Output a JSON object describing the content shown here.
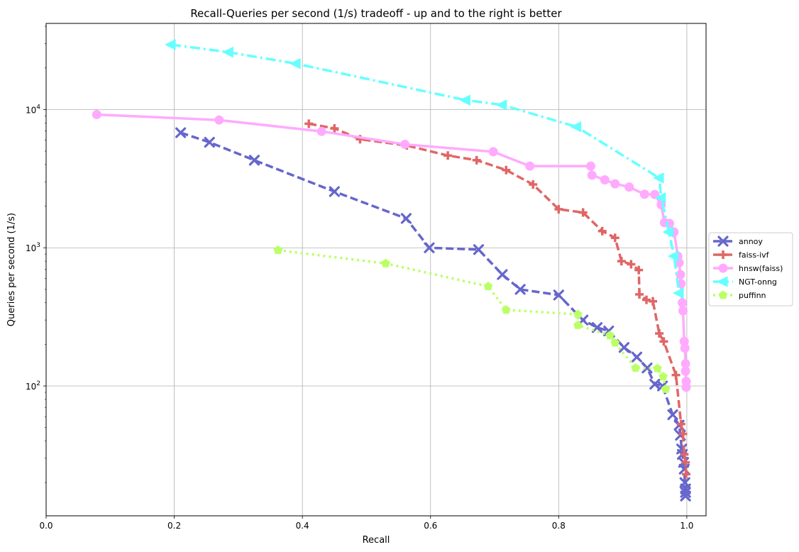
{
  "chart_data": {
    "type": "line",
    "title": "Recall-Queries per second (1/s) tradeoff - up and to the right is better",
    "xlabel": "Recall",
    "ylabel": "Queries per second (1/s)",
    "xlim": [
      0,
      1.03
    ],
    "ylim": [
      11.5,
      42000
    ],
    "yscale": "log",
    "grid": true,
    "legend_position": "right",
    "x_ticks": [
      {
        "value": 0.0,
        "label": "0.0"
      },
      {
        "value": 0.2,
        "label": "0.2"
      },
      {
        "value": 0.4,
        "label": "0.4"
      },
      {
        "value": 0.6,
        "label": "0.6"
      },
      {
        "value": 0.8,
        "label": "0.8"
      },
      {
        "value": 1.0,
        "label": "1.0"
      }
    ],
    "y_ticks": [
      {
        "value": 100,
        "base": "10",
        "exp": "2"
      },
      {
        "value": 1000,
        "base": "10",
        "exp": "3"
      },
      {
        "value": 10000,
        "base": "10",
        "exp": "4"
      }
    ],
    "series": [
      {
        "name": "annoy",
        "color": "#6666cc",
        "dash": "11,5",
        "marker": "x",
        "points": [
          [
            0.21,
            6800
          ],
          [
            0.255,
            5800
          ],
          [
            0.325,
            4300
          ],
          [
            0.45,
            2550
          ],
          [
            0.562,
            1630
          ],
          [
            0.598,
            1000
          ],
          [
            0.675,
            970
          ],
          [
            0.712,
            640
          ],
          [
            0.74,
            500
          ],
          [
            0.8,
            455
          ],
          [
            0.838,
            300
          ],
          [
            0.86,
            265
          ],
          [
            0.878,
            250
          ],
          [
            0.902,
            190
          ],
          [
            0.922,
            162
          ],
          [
            0.938,
            135
          ],
          [
            0.95,
            103
          ],
          [
            0.962,
            100
          ],
          [
            0.978,
            62
          ],
          [
            0.988,
            52
          ],
          [
            0.99,
            44
          ],
          [
            0.992,
            35
          ],
          [
            0.993,
            32
          ],
          [
            0.995,
            28
          ],
          [
            0.996,
            25
          ],
          [
            0.997,
            20
          ],
          [
            0.998,
            18
          ],
          [
            0.998,
            17
          ],
          [
            0.998,
            16
          ]
        ]
      },
      {
        "name": "faiss-ivf",
        "color": "#e06666",
        "dash": "11,5",
        "marker": "plus",
        "points": [
          [
            0.41,
            7900
          ],
          [
            0.45,
            7300
          ],
          [
            0.49,
            6100
          ],
          [
            0.563,
            5500
          ],
          [
            0.627,
            4650
          ],
          [
            0.672,
            4300
          ],
          [
            0.718,
            3650
          ],
          [
            0.76,
            2870
          ],
          [
            0.8,
            1900
          ],
          [
            0.838,
            1800
          ],
          [
            0.868,
            1320
          ],
          [
            0.888,
            1180
          ],
          [
            0.898,
            800
          ],
          [
            0.913,
            760
          ],
          [
            0.925,
            690
          ],
          [
            0.926,
            460
          ],
          [
            0.937,
            420
          ],
          [
            0.947,
            410
          ],
          [
            0.957,
            240
          ],
          [
            0.964,
            210
          ],
          [
            0.983,
            120
          ],
          [
            0.991,
            53
          ],
          [
            0.994,
            45
          ],
          [
            0.996,
            32
          ],
          [
            0.998,
            28
          ],
          [
            0.999,
            23
          ]
        ]
      },
      {
        "name": "hnsw(faiss)",
        "color": "#ffaaff",
        "dash": "",
        "marker": "circle",
        "points": [
          [
            0.079,
            9200
          ],
          [
            0.27,
            8400
          ],
          [
            0.43,
            6950
          ],
          [
            0.56,
            5600
          ],
          [
            0.698,
            4950
          ],
          [
            0.755,
            3900
          ],
          [
            0.85,
            3900
          ],
          [
            0.852,
            3350
          ],
          [
            0.872,
            3100
          ],
          [
            0.888,
            2900
          ],
          [
            0.91,
            2750
          ],
          [
            0.934,
            2440
          ],
          [
            0.95,
            2430
          ],
          [
            0.96,
            2050
          ],
          [
            0.965,
            1520
          ],
          [
            0.973,
            1500
          ],
          [
            0.98,
            1300
          ],
          [
            0.986,
            870
          ],
          [
            0.988,
            780
          ],
          [
            0.99,
            640
          ],
          [
            0.991,
            550
          ],
          [
            0.993,
            400
          ],
          [
            0.994,
            350
          ],
          [
            0.996,
            210
          ],
          [
            0.997,
            188
          ],
          [
            0.998,
            145
          ],
          [
            0.998,
            128
          ],
          [
            0.999,
            108
          ],
          [
            0.999,
            98
          ]
        ]
      },
      {
        "name": "NGT-onng",
        "color": "#66ffff",
        "dash": "14,5,3,5",
        "marker": "triangle-left",
        "points": [
          [
            0.195,
            29500
          ],
          [
            0.285,
            26000
          ],
          [
            0.39,
            21500
          ],
          [
            0.655,
            11700
          ],
          [
            0.712,
            10800
          ],
          [
            0.828,
            7500
          ],
          [
            0.957,
            3200
          ],
          [
            0.96,
            2300
          ],
          [
            0.972,
            1300
          ],
          [
            0.98,
            870
          ],
          [
            0.988,
            470
          ]
        ]
      },
      {
        "name": "puffinn",
        "color": "#bbff66",
        "dash": "3,5",
        "marker": "pentagon",
        "points": [
          [
            0.362,
            960
          ],
          [
            0.53,
            770
          ],
          [
            0.69,
            525
          ],
          [
            0.718,
            355
          ],
          [
            0.83,
            330
          ],
          [
            0.83,
            275
          ],
          [
            0.88,
            232
          ],
          [
            0.888,
            205
          ],
          [
            0.92,
            135
          ],
          [
            0.954,
            134
          ],
          [
            0.963,
            117
          ],
          [
            0.967,
            95
          ]
        ]
      }
    ]
  }
}
